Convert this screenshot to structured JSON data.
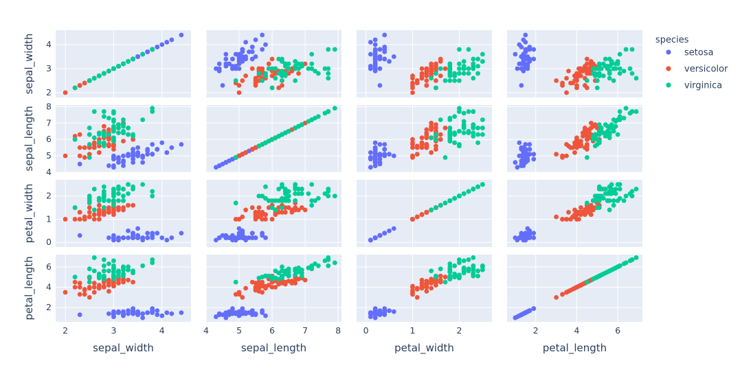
{
  "chart_data": {
    "type": "scatter",
    "subtype": "scatter_matrix",
    "dimensions": [
      "sepal_width",
      "sepal_length",
      "petal_width",
      "petal_length"
    ],
    "axes": {
      "sepal_width": {
        "range": [
          1.8,
          4.6
        ],
        "ticks": [
          2,
          3,
          4
        ],
        "tick_labels": [
          "2",
          "3",
          "4"
        ]
      },
      "sepal_length": {
        "range": [
          4.0,
          8.1
        ],
        "ticks": [
          4,
          5,
          6,
          7,
          8
        ],
        "tick_labels": [
          "4",
          "5",
          "6",
          "7",
          "8"
        ]
      },
      "petal_width": {
        "range": [
          -0.2,
          2.7
        ],
        "ticks": [
          0,
          1,
          2
        ],
        "tick_labels": [
          "0",
          "1",
          "2"
        ]
      },
      "petal_length": {
        "range": [
          0.6,
          7.2
        ],
        "ticks": [
          2,
          4,
          6
        ],
        "tick_labels": [
          "2",
          "4",
          "6"
        ]
      }
    },
    "grid": true,
    "legend": {
      "title": "species",
      "position": "top-right"
    },
    "series": [
      {
        "name": "setosa",
        "color": "#636efa",
        "points": [
          [
            5.1,
            3.5,
            1.4,
            0.2
          ],
          [
            4.9,
            3.0,
            1.4,
            0.2
          ],
          [
            4.7,
            3.2,
            1.3,
            0.2
          ],
          [
            4.6,
            3.1,
            1.5,
            0.2
          ],
          [
            5.0,
            3.6,
            1.4,
            0.2
          ],
          [
            5.4,
            3.9,
            1.7,
            0.4
          ],
          [
            4.6,
            3.4,
            1.4,
            0.3
          ],
          [
            5.0,
            3.4,
            1.5,
            0.2
          ],
          [
            4.4,
            2.9,
            1.4,
            0.2
          ],
          [
            4.9,
            3.1,
            1.5,
            0.1
          ],
          [
            5.4,
            3.7,
            1.5,
            0.2
          ],
          [
            4.8,
            3.4,
            1.6,
            0.2
          ],
          [
            4.8,
            3.0,
            1.4,
            0.1
          ],
          [
            4.3,
            3.0,
            1.1,
            0.1
          ],
          [
            5.8,
            4.0,
            1.2,
            0.2
          ],
          [
            5.7,
            4.4,
            1.5,
            0.4
          ],
          [
            5.4,
            3.9,
            1.3,
            0.4
          ],
          [
            5.1,
            3.5,
            1.4,
            0.3
          ],
          [
            5.7,
            3.8,
            1.7,
            0.3
          ],
          [
            5.1,
            3.8,
            1.5,
            0.3
          ],
          [
            5.4,
            3.4,
            1.7,
            0.2
          ],
          [
            5.1,
            3.7,
            1.5,
            0.4
          ],
          [
            4.6,
            3.6,
            1.0,
            0.2
          ],
          [
            5.1,
            3.3,
            1.7,
            0.5
          ],
          [
            4.8,
            3.4,
            1.9,
            0.2
          ],
          [
            5.0,
            3.0,
            1.6,
            0.2
          ],
          [
            5.0,
            3.4,
            1.6,
            0.4
          ],
          [
            5.2,
            3.5,
            1.5,
            0.2
          ],
          [
            5.2,
            3.4,
            1.4,
            0.2
          ],
          [
            4.7,
            3.2,
            1.6,
            0.2
          ],
          [
            4.8,
            3.1,
            1.6,
            0.2
          ],
          [
            5.4,
            3.4,
            1.5,
            0.4
          ],
          [
            5.2,
            4.1,
            1.5,
            0.1
          ],
          [
            5.5,
            4.2,
            1.4,
            0.2
          ],
          [
            4.9,
            3.1,
            1.5,
            0.1
          ],
          [
            5.0,
            3.2,
            1.2,
            0.2
          ],
          [
            5.5,
            3.5,
            1.3,
            0.2
          ],
          [
            4.9,
            3.6,
            1.4,
            0.1
          ],
          [
            4.4,
            3.0,
            1.3,
            0.2
          ],
          [
            5.1,
            3.4,
            1.5,
            0.2
          ],
          [
            5.0,
            3.5,
            1.3,
            0.3
          ],
          [
            4.5,
            2.3,
            1.3,
            0.3
          ],
          [
            4.4,
            3.2,
            1.3,
            0.2
          ],
          [
            5.0,
            3.5,
            1.6,
            0.6
          ],
          [
            5.1,
            3.8,
            1.9,
            0.4
          ],
          [
            4.8,
            3.0,
            1.4,
            0.3
          ],
          [
            5.1,
            3.8,
            1.6,
            0.2
          ],
          [
            4.6,
            3.2,
            1.4,
            0.2
          ],
          [
            5.3,
            3.7,
            1.5,
            0.2
          ],
          [
            5.0,
            3.3,
            1.4,
            0.2
          ]
        ]
      },
      {
        "name": "versicolor",
        "color": "#ef553b",
        "points": [
          [
            7.0,
            3.2,
            4.7,
            1.4
          ],
          [
            6.4,
            3.2,
            4.5,
            1.5
          ],
          [
            6.9,
            3.1,
            4.9,
            1.5
          ],
          [
            5.5,
            2.3,
            4.0,
            1.3
          ],
          [
            6.5,
            2.8,
            4.6,
            1.5
          ],
          [
            5.7,
            2.8,
            4.5,
            1.3
          ],
          [
            6.3,
            3.3,
            4.7,
            1.6
          ],
          [
            4.9,
            2.4,
            3.3,
            1.0
          ],
          [
            6.6,
            2.9,
            4.6,
            1.3
          ],
          [
            5.2,
            2.7,
            3.9,
            1.4
          ],
          [
            5.0,
            2.0,
            3.5,
            1.0
          ],
          [
            5.9,
            3.0,
            4.2,
            1.5
          ],
          [
            6.0,
            2.2,
            4.0,
            1.0
          ],
          [
            6.1,
            2.9,
            4.7,
            1.4
          ],
          [
            5.6,
            2.9,
            3.6,
            1.3
          ],
          [
            6.7,
            3.1,
            4.4,
            1.4
          ],
          [
            5.6,
            3.0,
            4.5,
            1.5
          ],
          [
            5.8,
            2.7,
            4.1,
            1.0
          ],
          [
            6.2,
            2.2,
            4.5,
            1.5
          ],
          [
            5.6,
            2.5,
            3.9,
            1.1
          ],
          [
            5.9,
            3.2,
            4.8,
            1.8
          ],
          [
            6.1,
            2.8,
            4.0,
            1.3
          ],
          [
            6.3,
            2.5,
            4.9,
            1.5
          ],
          [
            6.1,
            2.8,
            4.7,
            1.2
          ],
          [
            6.4,
            2.9,
            4.3,
            1.3
          ],
          [
            6.6,
            3.0,
            4.4,
            1.4
          ],
          [
            6.8,
            2.8,
            4.8,
            1.4
          ],
          [
            6.7,
            3.0,
            5.0,
            1.7
          ],
          [
            6.0,
            2.9,
            4.5,
            1.5
          ],
          [
            5.7,
            2.6,
            3.5,
            1.0
          ],
          [
            5.5,
            2.4,
            3.8,
            1.1
          ],
          [
            5.5,
            2.4,
            3.7,
            1.0
          ],
          [
            5.8,
            2.7,
            3.9,
            1.2
          ],
          [
            6.0,
            2.7,
            5.1,
            1.6
          ],
          [
            5.4,
            3.0,
            4.5,
            1.5
          ],
          [
            6.0,
            3.4,
            4.5,
            1.6
          ],
          [
            6.7,
            3.1,
            4.7,
            1.5
          ],
          [
            6.3,
            2.3,
            4.4,
            1.3
          ],
          [
            5.6,
            3.0,
            4.1,
            1.3
          ],
          [
            5.5,
            2.5,
            4.0,
            1.3
          ],
          [
            5.5,
            2.6,
            4.4,
            1.2
          ],
          [
            6.1,
            3.0,
            4.6,
            1.4
          ],
          [
            5.8,
            2.6,
            4.0,
            1.2
          ],
          [
            5.0,
            2.3,
            3.3,
            1.0
          ],
          [
            5.6,
            2.7,
            4.2,
            1.3
          ],
          [
            5.7,
            3.0,
            4.2,
            1.2
          ],
          [
            5.7,
            2.9,
            4.2,
            1.3
          ],
          [
            6.2,
            2.9,
            4.3,
            1.3
          ],
          [
            5.1,
            2.5,
            3.0,
            1.1
          ],
          [
            5.7,
            2.8,
            4.1,
            1.3
          ]
        ]
      },
      {
        "name": "virginica",
        "color": "#00cc96",
        "points": [
          [
            6.3,
            3.3,
            6.0,
            2.5
          ],
          [
            5.8,
            2.7,
            5.1,
            1.9
          ],
          [
            7.1,
            3.0,
            5.9,
            2.1
          ],
          [
            6.3,
            2.9,
            5.6,
            1.8
          ],
          [
            6.5,
            3.0,
            5.8,
            2.2
          ],
          [
            7.6,
            3.0,
            6.6,
            2.1
          ],
          [
            4.9,
            2.5,
            4.5,
            1.7
          ],
          [
            7.3,
            2.9,
            6.3,
            1.8
          ],
          [
            6.7,
            2.5,
            5.8,
            1.8
          ],
          [
            7.2,
            3.6,
            6.1,
            2.5
          ],
          [
            6.5,
            3.2,
            5.1,
            2.0
          ],
          [
            6.4,
            2.7,
            5.3,
            1.9
          ],
          [
            6.8,
            3.0,
            5.5,
            2.1
          ],
          [
            5.7,
            2.5,
            5.0,
            2.0
          ],
          [
            5.8,
            2.8,
            5.1,
            2.4
          ],
          [
            6.4,
            3.2,
            5.3,
            2.3
          ],
          [
            6.5,
            3.0,
            5.5,
            1.8
          ],
          [
            7.7,
            3.8,
            6.7,
            2.2
          ],
          [
            7.7,
            2.6,
            6.9,
            2.3
          ],
          [
            6.0,
            2.2,
            5.0,
            1.5
          ],
          [
            6.9,
            3.2,
            5.7,
            2.3
          ],
          [
            5.6,
            2.8,
            4.9,
            2.0
          ],
          [
            7.7,
            2.8,
            6.7,
            2.0
          ],
          [
            6.3,
            2.7,
            4.9,
            1.8
          ],
          [
            6.7,
            3.3,
            5.7,
            2.1
          ],
          [
            7.2,
            3.2,
            6.0,
            1.8
          ],
          [
            6.2,
            2.8,
            4.8,
            1.8
          ],
          [
            6.1,
            3.0,
            4.9,
            1.8
          ],
          [
            6.4,
            2.8,
            5.6,
            2.1
          ],
          [
            7.2,
            3.0,
            5.8,
            1.6
          ],
          [
            7.4,
            2.8,
            6.1,
            1.9
          ],
          [
            7.9,
            3.8,
            6.4,
            2.0
          ],
          [
            6.4,
            2.8,
            5.6,
            2.2
          ],
          [
            6.3,
            2.8,
            5.1,
            1.5
          ],
          [
            6.1,
            2.6,
            5.6,
            1.4
          ],
          [
            7.7,
            3.0,
            6.1,
            2.3
          ],
          [
            6.3,
            3.4,
            5.6,
            2.4
          ],
          [
            6.4,
            3.1,
            5.5,
            1.8
          ],
          [
            6.0,
            3.0,
            4.8,
            1.8
          ],
          [
            6.9,
            3.1,
            5.4,
            2.1
          ],
          [
            6.7,
            3.1,
            5.6,
            2.4
          ],
          [
            6.9,
            3.1,
            5.1,
            2.3
          ],
          [
            5.8,
            2.7,
            5.1,
            1.9
          ],
          [
            6.8,
            3.2,
            5.9,
            2.3
          ],
          [
            6.7,
            3.3,
            5.7,
            2.5
          ],
          [
            6.7,
            3.0,
            5.2,
            2.3
          ],
          [
            6.3,
            2.5,
            5.0,
            1.9
          ],
          [
            6.5,
            3.0,
            5.2,
            2.0
          ],
          [
            6.2,
            3.4,
            5.4,
            2.3
          ],
          [
            5.9,
            3.0,
            5.1,
            1.8
          ]
        ]
      }
    ]
  }
}
